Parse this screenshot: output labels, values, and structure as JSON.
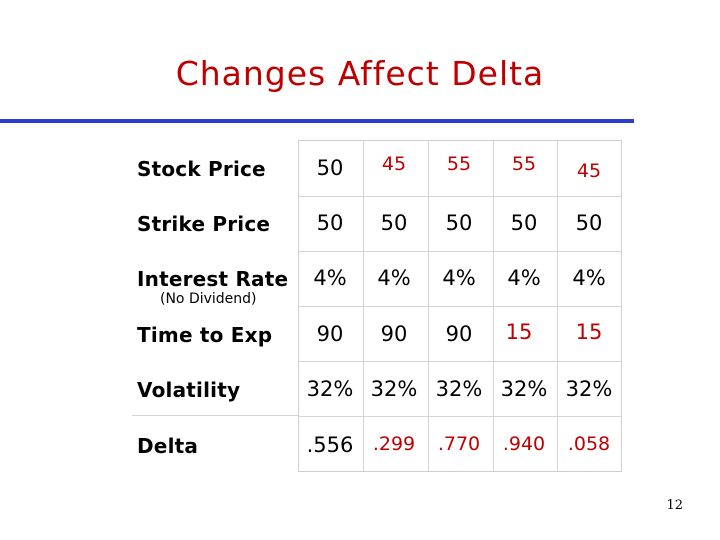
{
  "slide": {
    "title": "Changes Affect Delta",
    "page_number": "12",
    "accent_color": "#2a3fd2",
    "highlight_color": "#c00000"
  },
  "table": {
    "rows": [
      {
        "label": "Stock Price",
        "values": [
          "50",
          "45",
          "55",
          "55",
          "45"
        ],
        "highlight": [
          false,
          true,
          true,
          true,
          true
        ]
      },
      {
        "label": "Strike Price",
        "values": [
          "50",
          "50",
          "50",
          "50",
          "50"
        ],
        "highlight": [
          false,
          false,
          false,
          false,
          false
        ]
      },
      {
        "label": "Interest Rate",
        "note": "(No Dividend)",
        "values": [
          "4%",
          "4%",
          "4%",
          "4%",
          "4%"
        ],
        "highlight": [
          false,
          false,
          false,
          false,
          false
        ]
      },
      {
        "label": "Time to Exp",
        "values": [
          "90",
          "90",
          "90",
          "15",
          "15"
        ],
        "highlight": [
          false,
          false,
          false,
          true,
          true
        ]
      },
      {
        "label": "Volatility",
        "values": [
          "32%",
          "32%",
          "32%",
          "32%",
          "32%"
        ],
        "highlight": [
          false,
          false,
          false,
          false,
          false
        ]
      },
      {
        "label": "Delta",
        "values": [
          ".556",
          ".299",
          ".770",
          ".940",
          ".058"
        ],
        "highlight": [
          false,
          true,
          true,
          true,
          true
        ]
      }
    ]
  }
}
